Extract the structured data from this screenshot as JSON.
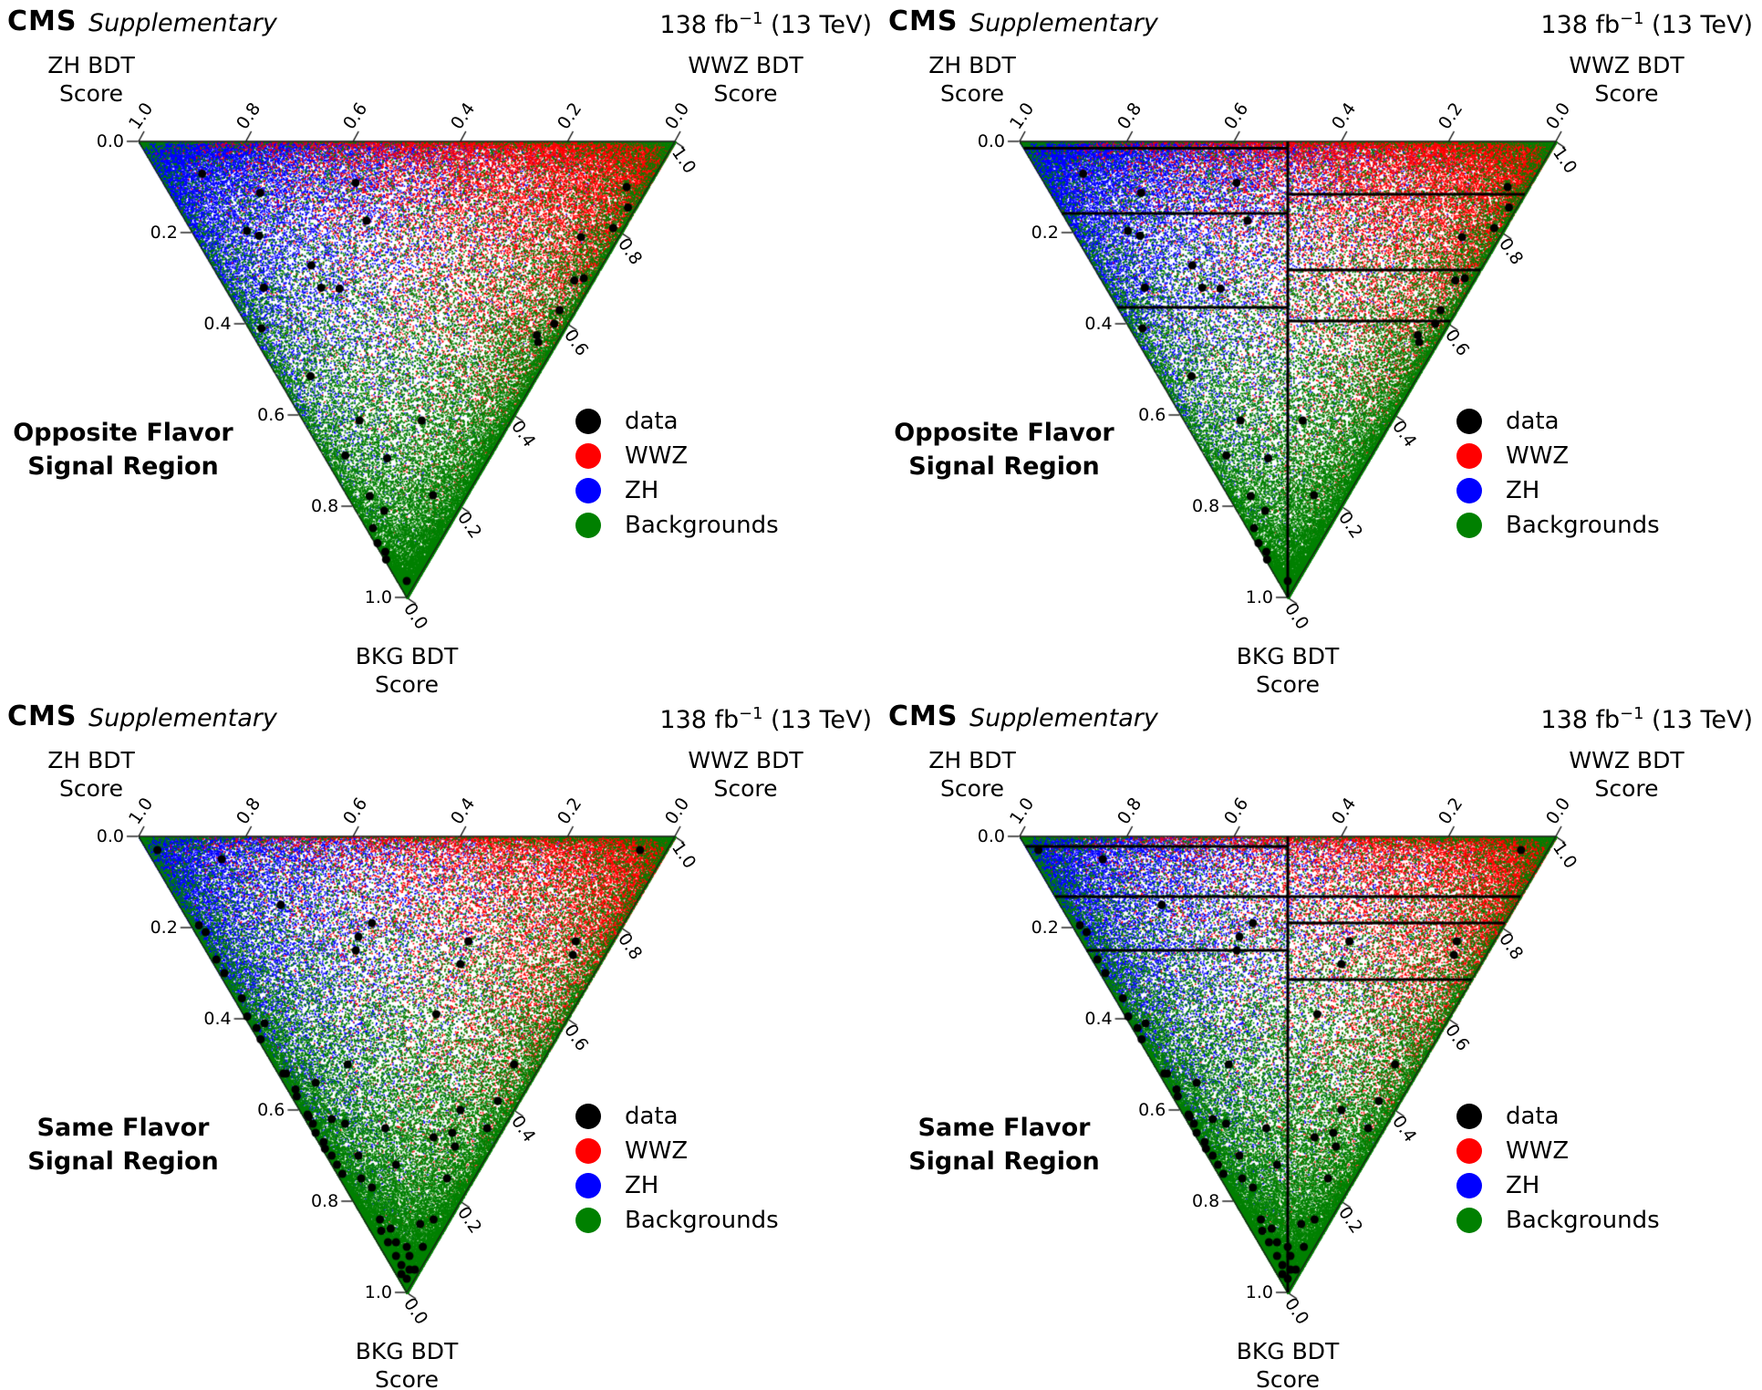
{
  "header": {
    "experiment": "CMS",
    "label": "Supplementary",
    "lumi_prefix": "138 fb",
    "lumi_exponent": "−1",
    "lumi_suffix": " (13 TeV)"
  },
  "axes": {
    "zh_title": [
      "ZH BDT",
      "Score"
    ],
    "wwz_title": [
      "WWZ BDT",
      "Score"
    ],
    "bkg_title": [
      "BKG BDT",
      "Score"
    ]
  },
  "ticks": {
    "top": [
      "1.0",
      "0.8",
      "0.6",
      "0.4",
      "0.2",
      "0.0"
    ],
    "left": [
      "0.0",
      "0.2",
      "0.4",
      "0.6",
      "0.8",
      "1.0"
    ],
    "right": [
      "1.0",
      "0.8",
      "0.6",
      "0.4",
      "0.2",
      "0.0"
    ]
  },
  "legend": [
    {
      "label": "data",
      "color": "#000000"
    },
    {
      "label": "WWZ",
      "color": "#ff0000"
    },
    {
      "label": "ZH",
      "color": "#0000ff"
    },
    {
      "label": "Backgrounds",
      "color": "#008000"
    }
  ],
  "panels": [
    {
      "region_label": [
        "Opposite Flavor",
        "Signal Region"
      ],
      "flavor": "OF",
      "show_bins": false,
      "bins": null
    },
    {
      "region_label": [
        "Opposite Flavor",
        "Signal Region"
      ],
      "flavor": "OF",
      "show_bins": true,
      "bins": {
        "vertical_split_fraction": 0.5,
        "left_half_bkg_lines": [
          0.015,
          0.158,
          0.364
        ],
        "right_half_bkg_lines": [
          0.116,
          0.282,
          0.394
        ]
      }
    },
    {
      "region_label": [
        "Same Flavor",
        "Signal Region"
      ],
      "flavor": "SF",
      "show_bins": false,
      "bins": null
    },
    {
      "region_label": [
        "Same Flavor",
        "Signal Region"
      ],
      "flavor": "SF",
      "show_bins": true,
      "bins": {
        "vertical_split_fraction": 0.5,
        "left_half_bkg_lines": [
          0.022,
          0.132,
          0.25
        ],
        "right_half_bkg_lines": [
          0.132,
          0.19,
          0.314
        ]
      }
    }
  ],
  "chart_data": [
    {
      "type": "scatter",
      "variant": "ternary",
      "title": "Opposite Flavor Signal Region",
      "axes": {
        "top_left_corner": "ZH BDT Score = 1.0",
        "top_right_corner": "WWZ BDT Score = 1.0",
        "bottom_corner": "BKG BDT Score = 1.0",
        "tick_values": [
          0.0,
          0.2,
          0.4,
          0.6,
          0.8,
          1.0
        ]
      },
      "legend_position": "lower right",
      "series": [
        {
          "name": "data",
          "color": "#000000",
          "marker": "large-dot",
          "points_zh_wwz_bkg": [
            [
              0.846,
              0.083,
              0.071
            ],
            [
              0.55,
              0.359,
              0.091
            ],
            [
              0.717,
              0.17,
              0.113
            ],
            [
              0.488,
              0.338,
              0.174
            ],
            [
              0.7,
              0.104,
              0.196
            ],
            [
              0.672,
              0.121,
              0.207
            ],
            [
              0.542,
              0.186,
              0.272
            ],
            [
              0.606,
              0.073,
              0.321
            ],
            [
              0.499,
              0.18,
              0.321
            ],
            [
              0.464,
              0.213,
              0.323
            ],
            [
              0.566,
              0.024,
              0.41
            ],
            [
              0.422,
              0.063,
              0.515
            ],
            [
              0.282,
              0.106,
              0.612
            ],
            [
              0.166,
              0.222,
              0.612
            ],
            [
              0.27,
              0.041,
              0.689
            ],
            [
              0.189,
              0.116,
              0.695
            ],
            [
              0.18,
              0.042,
              0.778
            ],
            [
              0.137,
              0.053,
              0.81
            ],
            [
              0.063,
              0.161,
              0.776
            ],
            [
              0.139,
              0.013,
              0.848
            ],
            [
              0.114,
              0.005,
              0.881
            ],
            [
              0.09,
              0.01,
              0.9
            ],
            [
              0.08,
              0.003,
              0.917
            ],
            [
              0.018,
              0.018,
              0.964
            ],
            [
              0.04,
              0.86,
              0.1
            ],
            [
              0.015,
              0.84,
              0.145
            ],
            [
              0.02,
              0.79,
              0.19
            ],
            [
              0.07,
              0.72,
              0.21
            ],
            [
              0.02,
              0.68,
              0.3
            ],
            [
              0.035,
              0.66,
              0.305
            ],
            [
              0.03,
              0.6,
              0.37
            ],
            [
              0.025,
              0.575,
              0.4
            ],
            [
              0.045,
              0.53,
              0.425
            ],
            [
              0.035,
              0.525,
              0.44
            ]
          ]
        },
        {
          "name": "WWZ",
          "color": "#ff0000",
          "marker": "pixel-dot",
          "n_approx": 24000,
          "distribution": "dense toward WWZ corner, hugging top and right edges",
          "approx_dirichlet_alpha": [
            0.65,
            2.2,
            0.52
          ]
        },
        {
          "name": "ZH",
          "color": "#0000ff",
          "marker": "pixel-dot",
          "n_approx": 24000,
          "distribution": "dense toward ZH corner, hugging top and left edges",
          "approx_dirichlet_alpha": [
            2.2,
            0.65,
            0.52
          ]
        },
        {
          "name": "Backgrounds",
          "color": "#008000",
          "marker": "pixel-dot",
          "n_approx": 29000,
          "distribution": "dense toward BKG corner and along right edge",
          "approx_dirichlet_alpha": [
            0.38,
            0.62,
            1.55
          ]
        }
      ],
      "bin_boundaries_shown_in_right_panel": {
        "vertical_split_fraction": 0.5,
        "left_half_bkg_lines": [
          0.015,
          0.158,
          0.364
        ],
        "right_half_bkg_lines": [
          0.116,
          0.282,
          0.394
        ]
      }
    },
    {
      "type": "scatter",
      "variant": "ternary",
      "title": "Same Flavor Signal Region",
      "axes": {
        "top_left_corner": "ZH BDT Score = 1.0",
        "top_right_corner": "WWZ BDT Score = 1.0",
        "bottom_corner": "BKG BDT Score = 1.0",
        "tick_values": [
          0.0,
          0.2,
          0.4,
          0.6,
          0.8,
          1.0
        ]
      },
      "legend_position": "lower right",
      "series": [
        {
          "name": "data",
          "color": "#000000",
          "marker": "large-dot",
          "points_zh_wwz_bkg": [
            [
              0.95,
              0.02,
              0.03
            ],
            [
              0.82,
              0.13,
              0.05
            ],
            [
              0.66,
              0.19,
              0.15
            ],
            [
              0.79,
              0.015,
              0.195
            ],
            [
              0.47,
              0.34,
              0.19
            ],
            [
              0.48,
              0.3,
              0.22
            ],
            [
              0.47,
              0.28,
              0.25
            ],
            [
              0.27,
              0.5,
              0.23
            ],
            [
              0.26,
              0.46,
              0.28
            ],
            [
              0.25,
              0.36,
              0.39
            ],
            [
              0.07,
              0.7,
              0.23
            ],
            [
              0.06,
              0.68,
              0.26
            ],
            [
              0.05,
              0.92,
              0.03
            ],
            [
              0.77,
              0.02,
              0.21
            ],
            [
              0.72,
              0.01,
              0.27
            ],
            [
              0.69,
              0.01,
              0.3
            ],
            [
              0.63,
              0.015,
              0.355
            ],
            [
              0.6,
              0.005,
              0.395
            ],
            [
              0.57,
              0.01,
              0.42
            ],
            [
              0.55,
              0.005,
              0.445
            ],
            [
              0.56,
              0.03,
              0.41
            ],
            [
              0.47,
              0.01,
              0.52
            ],
            [
              0.465,
              0.015,
              0.52
            ],
            [
              0.43,
              0.015,
              0.555
            ],
            [
              0.42,
              0.01,
              0.57
            ],
            [
              0.38,
              0.01,
              0.61
            ],
            [
              0.375,
              0.01,
              0.615
            ],
            [
              0.36,
              0.01,
              0.63
            ],
            [
              0.345,
              0.005,
              0.65
            ],
            [
              0.32,
              0.01,
              0.67
            ],
            [
              0.31,
              0.005,
              0.685
            ],
            [
              0.29,
              0.01,
              0.7
            ],
            [
              0.27,
              0.01,
              0.72
            ],
            [
              0.25,
              0.01,
              0.74
            ],
            [
              0.4,
              0.06,
              0.54
            ],
            [
              0.33,
              0.05,
              0.62
            ],
            [
              0.3,
              0.07,
              0.63
            ],
            [
              0.24,
              0.06,
              0.7
            ],
            [
              0.21,
              0.04,
              0.75
            ],
            [
              0.18,
              0.05,
              0.77
            ],
            [
              0.36,
              0.14,
              0.5
            ],
            [
              0.22,
              0.14,
              0.64
            ],
            [
              0.16,
              0.12,
              0.72
            ],
            [
              0.05,
              0.45,
              0.5
            ],
            [
              0.04,
              0.38,
              0.58
            ],
            [
              0.1,
              0.3,
              0.6
            ],
            [
              0.09,
              0.26,
              0.65
            ],
            [
              0.07,
              0.25,
              0.68
            ],
            [
              0.05,
              0.2,
              0.75
            ],
            [
              0.03,
              0.33,
              0.64
            ],
            [
              0.12,
              0.22,
              0.66
            ],
            [
              0.13,
              0.03,
              0.84
            ],
            [
              0.115,
              0.02,
              0.865
            ],
            [
              0.1,
              0.04,
              0.86
            ],
            [
              0.09,
              0.02,
              0.89
            ],
            [
              0.075,
              0.035,
              0.89
            ],
            [
              0.06,
              0.02,
              0.92
            ],
            [
              0.05,
              0.05,
              0.9
            ],
            [
              0.04,
              0.02,
              0.94
            ],
            [
              0.035,
              0.045,
              0.92
            ],
            [
              0.03,
              0.01,
              0.96
            ],
            [
              0.02,
              0.03,
              0.95
            ],
            [
              0.015,
              0.015,
              0.97
            ],
            [
              0.01,
              0.04,
              0.95
            ],
            [
              0.05,
              0.1,
              0.85
            ],
            [
              0.03,
              0.13,
              0.84
            ],
            [
              0.02,
              0.08,
              0.9
            ]
          ]
        },
        {
          "name": "WWZ",
          "color": "#ff0000",
          "marker": "pixel-dot",
          "n_approx": 20000,
          "distribution": "dense toward WWZ corner",
          "approx_dirichlet_alpha": [
            0.55,
            2.1,
            0.55
          ]
        },
        {
          "name": "ZH",
          "color": "#0000ff",
          "marker": "pixel-dot",
          "n_approx": 22000,
          "distribution": "dense toward ZH corner and down left edge",
          "approx_dirichlet_alpha": [
            2.0,
            0.45,
            0.7
          ]
        },
        {
          "name": "Backgrounds",
          "color": "#008000",
          "marker": "pixel-dot",
          "n_approx": 37000,
          "distribution": "dense toward BKG corner, hugging both lower edges",
          "approx_dirichlet_alpha": [
            0.5,
            0.42,
            1.6
          ]
        }
      ],
      "bin_boundaries_shown_in_right_panel": {
        "vertical_split_fraction": 0.5,
        "left_half_bkg_lines": [
          0.022,
          0.132,
          0.25
        ],
        "right_half_bkg_lines": [
          0.132,
          0.19,
          0.314
        ]
      }
    }
  ]
}
